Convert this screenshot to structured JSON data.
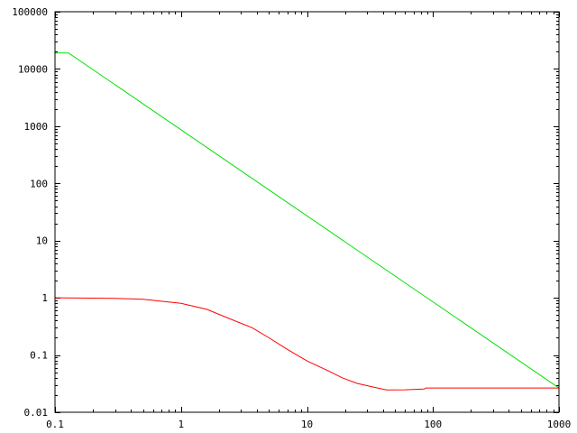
{
  "chart_data": {
    "type": "line",
    "title": "",
    "xlabel": "",
    "ylabel": "",
    "xscale": "log",
    "yscale": "log",
    "xlim": [
      0.1,
      1000
    ],
    "ylim": [
      0.01,
      100000
    ],
    "grid": false,
    "legend": "none",
    "x_ticks": [
      "0.1",
      "1",
      "10",
      "100",
      "1000"
    ],
    "y_ticks": [
      "0.01",
      "0.1",
      "1",
      "10",
      "100",
      "1000",
      "10000",
      "100000"
    ],
    "series": [
      {
        "color": "#00e000",
        "x": [
          0.1,
          0.128,
          1000
        ],
        "y": [
          19000,
          19000,
          0.0266
        ]
      },
      {
        "color": "#ff0000",
        "x": [
          0.1,
          0.3,
          0.5,
          1,
          1.6,
          2.5,
          3.67,
          5,
          7,
          10,
          15,
          19,
          25,
          35,
          43,
          60,
          85,
          88,
          1000
        ],
        "y": [
          1.0,
          0.98,
          0.94,
          0.8,
          0.63,
          0.42,
          0.3,
          0.2,
          0.125,
          0.079,
          0.052,
          0.04,
          0.032,
          0.027,
          0.0246,
          0.0247,
          0.0255,
          0.0266,
          0.0266
        ]
      }
    ]
  }
}
